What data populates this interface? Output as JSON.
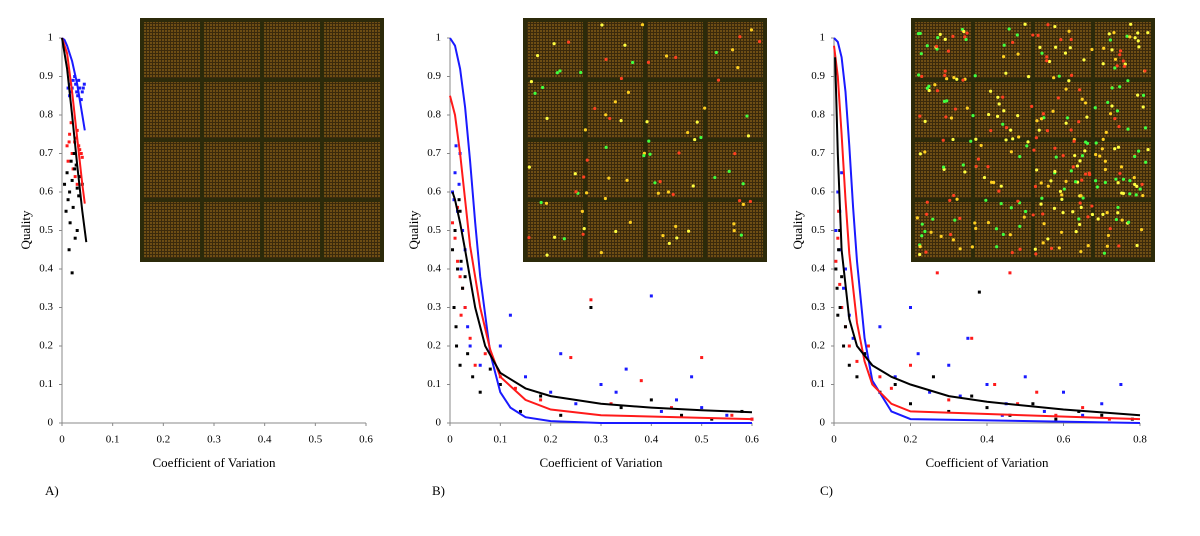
{
  "chart_data": [
    {
      "type": "scatter",
      "panel_label": "A)",
      "xlabel": "Coefficient of Variation",
      "ylabel": "Quality",
      "xlim": [
        0,
        0.6
      ],
      "ylim": [
        0,
        1
      ],
      "xticks": [
        0,
        0.1,
        0.2,
        0.3,
        0.4,
        0.5,
        0.6
      ],
      "yticks": [
        0,
        0.1,
        0.2,
        0.3,
        0.4,
        0.5,
        0.6,
        0.7,
        0.8,
        0.9,
        1
      ],
      "series": [
        {
          "mode": "markers",
          "color": "#1a1aff",
          "x": [
            0.012,
            0.018,
            0.022,
            0.027,
            0.031,
            0.035,
            0.04,
            0.044,
            0.015,
            0.025,
            0.033,
            0.038,
            0.02,
            0.029,
            0.042,
            0.017
          ],
          "values": [
            0.87,
            0.86,
            0.89,
            0.88,
            0.85,
            0.87,
            0.86,
            0.88,
            0.85,
            0.9,
            0.89,
            0.84,
            0.87,
            0.86,
            0.87,
            0.88
          ]
        },
        {
          "mode": "markers",
          "color": "#ff1a1a",
          "x": [
            0.01,
            0.015,
            0.02,
            0.025,
            0.03,
            0.035,
            0.04,
            0.012,
            0.022,
            0.028,
            0.033,
            0.018,
            0.026,
            0.038,
            0.014,
            0.03
          ],
          "values": [
            0.72,
            0.75,
            0.7,
            0.73,
            0.76,
            0.71,
            0.69,
            0.68,
            0.66,
            0.74,
            0.72,
            0.78,
            0.64,
            0.7,
            0.73,
            0.62
          ]
        },
        {
          "mode": "markers",
          "color": "#000000",
          "x": [
            0.005,
            0.01,
            0.015,
            0.02,
            0.025,
            0.03,
            0.035,
            0.04,
            0.012,
            0.018,
            0.022,
            0.028,
            0.033,
            0.008,
            0.016,
            0.024,
            0.014,
            0.02,
            0.03,
            0.026
          ],
          "values": [
            0.62,
            0.65,
            0.6,
            0.63,
            0.66,
            0.61,
            0.64,
            0.62,
            0.58,
            0.68,
            0.56,
            0.67,
            0.59,
            0.55,
            0.52,
            0.7,
            0.45,
            0.39,
            0.5,
            0.48
          ]
        },
        {
          "mode": "line",
          "color": "#1a1aff",
          "x": [
            0,
            0.005,
            0.01,
            0.02,
            0.03,
            0.04,
            0.045
          ],
          "values": [
            1,
            0.995,
            0.98,
            0.94,
            0.88,
            0.8,
            0.76
          ]
        },
        {
          "mode": "line",
          "color": "#ff1a1a",
          "x": [
            0,
            0.01,
            0.02,
            0.03,
            0.04,
            0.045
          ],
          "values": [
            1,
            0.96,
            0.86,
            0.74,
            0.62,
            0.57
          ]
        },
        {
          "mode": "line",
          "color": "#000000",
          "x": [
            0,
            0.01,
            0.02,
            0.03,
            0.04,
            0.048
          ],
          "values": [
            1,
            0.92,
            0.8,
            0.67,
            0.55,
            0.47
          ]
        }
      ]
    },
    {
      "type": "scatter",
      "panel_label": "B)",
      "xlabel": "Coefficient of Variation",
      "ylabel": "Quality",
      "xlim": [
        0,
        0.6
      ],
      "ylim": [
        0,
        1
      ],
      "xticks": [
        0,
        0.1,
        0.2,
        0.3,
        0.4,
        0.5,
        0.6
      ],
      "yticks": [
        0,
        0.1,
        0.2,
        0.3,
        0.4,
        0.5,
        0.6,
        0.7,
        0.8,
        0.9,
        1
      ],
      "series": [
        {
          "mode": "markers",
          "color": "#1a1aff",
          "x": [
            0.005,
            0.01,
            0.015,
            0.02,
            0.025,
            0.03,
            0.012,
            0.018,
            0.022,
            0.008,
            0.03,
            0.035,
            0.04,
            0.06,
            0.1,
            0.15,
            0.2,
            0.25,
            0.3,
            0.35,
            0.4,
            0.45,
            0.5,
            0.55,
            0.6,
            0.12,
            0.22,
            0.33,
            0.42,
            0.48
          ],
          "values": [
            0.6,
            0.65,
            0.55,
            0.7,
            0.5,
            0.45,
            0.72,
            0.62,
            0.4,
            0.58,
            0.3,
            0.25,
            0.2,
            0.15,
            0.2,
            0.12,
            0.08,
            0.05,
            0.1,
            0.14,
            0.33,
            0.06,
            0.04,
            0.02,
            0.01,
            0.28,
            0.18,
            0.08,
            0.03,
            0.12
          ]
        },
        {
          "mode": "markers",
          "color": "#ff1a1a",
          "x": [
            0.005,
            0.01,
            0.015,
            0.02,
            0.025,
            0.03,
            0.04,
            0.05,
            0.07,
            0.1,
            0.13,
            0.18,
            0.24,
            0.28,
            0.32,
            0.38,
            0.44,
            0.5,
            0.56,
            0.6,
            0.015,
            0.022
          ],
          "values": [
            0.52,
            0.48,
            0.42,
            0.38,
            0.35,
            0.3,
            0.22,
            0.15,
            0.18,
            0.12,
            0.09,
            0.06,
            0.17,
            0.32,
            0.05,
            0.11,
            0.04,
            0.17,
            0.02,
            0.01,
            0.56,
            0.28
          ]
        },
        {
          "mode": "markers",
          "color": "#000000",
          "x": [
            0.005,
            0.01,
            0.015,
            0.02,
            0.025,
            0.03,
            0.008,
            0.012,
            0.018,
            0.022,
            0.035,
            0.045,
            0.06,
            0.08,
            0.1,
            0.14,
            0.18,
            0.22,
            0.28,
            0.34,
            0.4,
            0.46,
            0.52,
            0.58,
            0.013,
            0.02
          ],
          "values": [
            0.45,
            0.5,
            0.4,
            0.55,
            0.35,
            0.38,
            0.3,
            0.25,
            0.58,
            0.42,
            0.18,
            0.12,
            0.08,
            0.14,
            0.1,
            0.03,
            0.07,
            0.02,
            0.3,
            0.04,
            0.06,
            0.02,
            0.01,
            0.03,
            0.2,
            0.15
          ]
        },
        {
          "mode": "line",
          "color": "#1a1aff",
          "x": [
            0,
            0.01,
            0.02,
            0.03,
            0.04,
            0.05,
            0.06,
            0.08,
            0.1,
            0.12,
            0.15,
            0.2,
            0.3,
            0.6
          ],
          "values": [
            1,
            0.98,
            0.92,
            0.82,
            0.68,
            0.52,
            0.38,
            0.18,
            0.08,
            0.04,
            0.015,
            0.005,
            0,
            0
          ]
        },
        {
          "mode": "line",
          "color": "#ff1a1a",
          "x": [
            0,
            0.01,
            0.02,
            0.03,
            0.04,
            0.06,
            0.08,
            0.1,
            0.15,
            0.2,
            0.3,
            0.6
          ],
          "values": [
            0.85,
            0.8,
            0.7,
            0.58,
            0.46,
            0.3,
            0.19,
            0.12,
            0.06,
            0.035,
            0.02,
            0.01
          ]
        },
        {
          "mode": "line",
          "color": "#000000",
          "x": [
            0.005,
            0.01,
            0.02,
            0.03,
            0.05,
            0.07,
            0.1,
            0.15,
            0.2,
            0.3,
            0.4,
            0.5,
            0.6
          ],
          "values": [
            0.6,
            0.58,
            0.52,
            0.45,
            0.3,
            0.2,
            0.13,
            0.09,
            0.07,
            0.05,
            0.04,
            0.033,
            0.028
          ]
        }
      ]
    },
    {
      "type": "scatter",
      "panel_label": "C)",
      "xlabel": "Coefficient of Variation",
      "ylabel": "Quality",
      "xlim": [
        0,
        0.8
      ],
      "ylim": [
        0,
        1
      ],
      "xticks": [
        0,
        0.2,
        0.4,
        0.6,
        0.8
      ],
      "yticks": [
        0,
        0.1,
        0.2,
        0.3,
        0.4,
        0.5,
        0.6,
        0.7,
        0.8,
        0.9,
        1
      ],
      "series": [
        {
          "mode": "markers",
          "color": "#1a1aff",
          "x": [
            0.005,
            0.01,
            0.015,
            0.02,
            0.025,
            0.03,
            0.04,
            0.05,
            0.08,
            0.12,
            0.16,
            0.2,
            0.25,
            0.3,
            0.35,
            0.4,
            0.45,
            0.5,
            0.55,
            0.6,
            0.65,
            0.7,
            0.75,
            0.22,
            0.33,
            0.44,
            0.015,
            0.02
          ],
          "values": [
            0.5,
            0.6,
            0.45,
            0.65,
            0.35,
            0.4,
            0.28,
            0.22,
            0.18,
            0.25,
            0.12,
            0.3,
            0.08,
            0.15,
            0.22,
            0.1,
            0.05,
            0.12,
            0.03,
            0.08,
            0.02,
            0.05,
            0.1,
            0.18,
            0.07,
            0.02,
            0.55,
            0.3
          ]
        },
        {
          "mode": "markers",
          "color": "#ff1a1a",
          "x": [
            0.005,
            0.01,
            0.015,
            0.02,
            0.03,
            0.04,
            0.06,
            0.09,
            0.12,
            0.15,
            0.2,
            0.27,
            0.3,
            0.36,
            0.42,
            0.48,
            0.53,
            0.58,
            0.65,
            0.72,
            0.46,
            0.012
          ],
          "values": [
            0.42,
            0.48,
            0.36,
            0.3,
            0.25,
            0.2,
            0.16,
            0.2,
            0.12,
            0.09,
            0.15,
            0.39,
            0.06,
            0.22,
            0.1,
            0.05,
            0.08,
            0.02,
            0.04,
            0.01,
            0.39,
            0.55
          ]
        },
        {
          "mode": "markers",
          "color": "#000000",
          "x": [
            0.005,
            0.008,
            0.012,
            0.016,
            0.02,
            0.025,
            0.03,
            0.04,
            0.06,
            0.08,
            0.12,
            0.16,
            0.2,
            0.26,
            0.3,
            0.36,
            0.4,
            0.46,
            0.52,
            0.58,
            0.64,
            0.7,
            0.78,
            0.38,
            0.01,
            0.015
          ],
          "values": [
            0.4,
            0.35,
            0.45,
            0.3,
            0.38,
            0.2,
            0.25,
            0.15,
            0.12,
            0.18,
            0.08,
            0.1,
            0.05,
            0.12,
            0.03,
            0.07,
            0.04,
            0.02,
            0.05,
            0.01,
            0.03,
            0.02,
            0.01,
            0.34,
            0.28,
            0.5
          ]
        },
        {
          "mode": "line",
          "color": "#1a1aff",
          "x": [
            0,
            0.01,
            0.02,
            0.03,
            0.04,
            0.05,
            0.06,
            0.08,
            0.1,
            0.15,
            0.2,
            0.8
          ],
          "values": [
            1,
            0.99,
            0.95,
            0.86,
            0.72,
            0.56,
            0.42,
            0.22,
            0.11,
            0.03,
            0.01,
            0
          ]
        },
        {
          "mode": "line",
          "color": "#ff1a1a",
          "x": [
            0,
            0.01,
            0.02,
            0.03,
            0.04,
            0.06,
            0.08,
            0.1,
            0.15,
            0.2,
            0.8
          ],
          "values": [
            0.98,
            0.9,
            0.75,
            0.58,
            0.44,
            0.26,
            0.16,
            0.1,
            0.05,
            0.03,
            0.01
          ]
        },
        {
          "mode": "line",
          "color": "#000000",
          "x": [
            0.003,
            0.01,
            0.02,
            0.04,
            0.06,
            0.1,
            0.15,
            0.2,
            0.3,
            0.4,
            0.6,
            0.8
          ],
          "values": [
            0.95,
            0.7,
            0.45,
            0.27,
            0.2,
            0.15,
            0.12,
            0.1,
            0.07,
            0.055,
            0.035,
            0.02
          ]
        }
      ]
    }
  ]
}
